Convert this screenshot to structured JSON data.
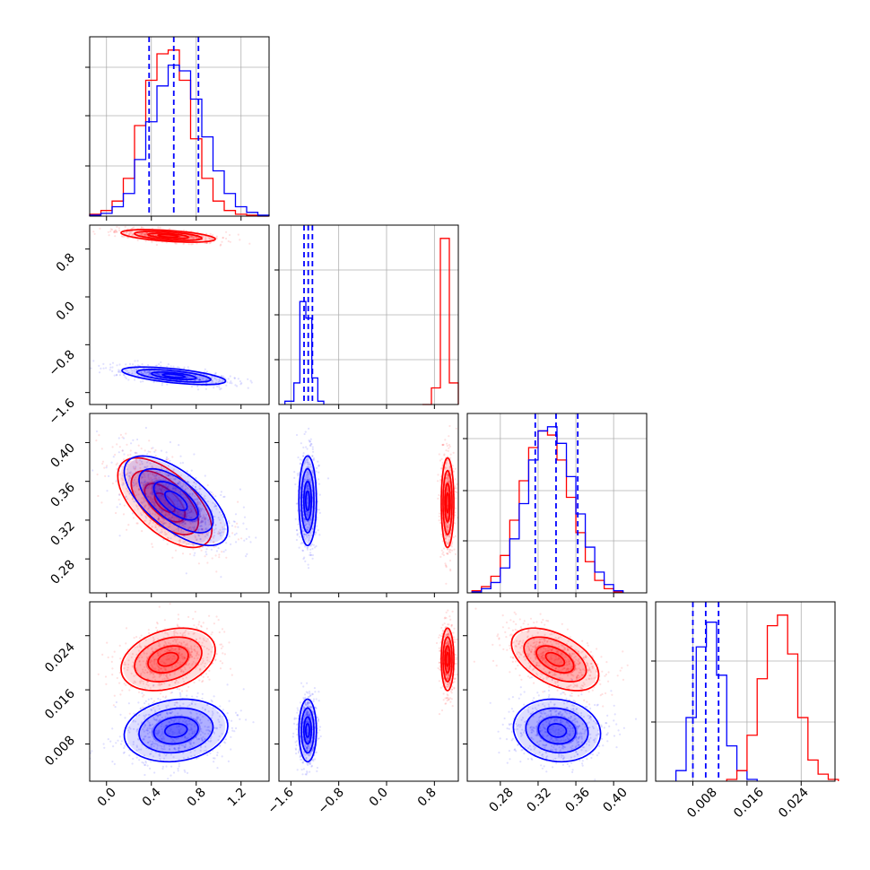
{
  "chart_data": [
    {
      "type": "histogram",
      "panel": "diag-0",
      "xlim": [
        -0.15,
        1.45
      ],
      "x_ticks": [
        0.0,
        0.4,
        0.8,
        1.2
      ],
      "series": [
        {
          "name": "",
          "color": "#ff0000",
          "bin_edges": [
            -0.15,
            -0.05,
            0.05,
            0.15,
            0.25,
            0.35,
            0.45,
            0.55,
            0.65,
            0.75,
            0.85,
            0.95,
            1.05,
            1.15,
            1.25,
            1.35,
            1.45
          ],
          "counts": [
            0.1,
            0.3,
            0.8,
            2.0,
            4.8,
            7.2,
            8.6,
            8.8,
            7.2,
            4.1,
            2.0,
            0.8,
            0.3,
            0.1,
            0.05,
            0.0
          ]
        },
        {
          "name": "",
          "color": "#0000ff",
          "bin_edges": [
            -0.15,
            -0.05,
            0.05,
            0.15,
            0.25,
            0.35,
            0.45,
            0.55,
            0.65,
            0.75,
            0.85,
            0.95,
            1.05,
            1.15,
            1.25,
            1.35,
            1.45
          ],
          "counts": [
            0.05,
            0.15,
            0.5,
            1.2,
            3.0,
            5.0,
            6.9,
            8.0,
            7.7,
            6.2,
            4.2,
            2.4,
            1.2,
            0.5,
            0.2,
            0.05
          ]
        }
      ],
      "quantiles": [
        0.38,
        0.6,
        0.82
      ]
    },
    {
      "type": "histogram",
      "panel": "diag-1",
      "xlim": [
        -1.8,
        1.2
      ],
      "x_ticks": [
        -1.6,
        -0.8,
        0.0,
        0.8
      ],
      "series": [
        {
          "name": "",
          "color": "#ff0000",
          "bin_edges": [
            0.6,
            0.75,
            0.9,
            1.05,
            1.2
          ],
          "counts": [
            0.0,
            1.0,
            10.0,
            1.3
          ]
        },
        {
          "name": "",
          "color": "#0000ff",
          "bin_edges": [
            -1.7,
            -1.55,
            -1.45,
            -1.35,
            -1.25,
            -1.15,
            -1.05
          ],
          "counts": [
            0.2,
            1.3,
            6.2,
            5.2,
            1.6,
            0.2
          ]
        }
      ],
      "quantiles": [
        -1.38,
        -1.31,
        -1.24
      ]
    },
    {
      "type": "histogram",
      "panel": "diag-2",
      "xlim": [
        0.245,
        0.435
      ],
      "x_ticks": [
        0.28,
        0.32,
        0.36,
        0.4
      ],
      "series": [
        {
          "name": "",
          "color": "#ff0000",
          "bin_edges": [
            0.25,
            0.26,
            0.27,
            0.28,
            0.29,
            0.3,
            0.31,
            0.32,
            0.33,
            0.34,
            0.35,
            0.36,
            0.37,
            0.38,
            0.39,
            0.4,
            0.41
          ],
          "counts": [
            0.1,
            0.3,
            0.8,
            1.8,
            3.5,
            5.4,
            7.0,
            7.8,
            7.6,
            6.4,
            4.6,
            2.9,
            1.5,
            0.6,
            0.2,
            0.05
          ]
        },
        {
          "name": "",
          "color": "#0000ff",
          "bin_edges": [
            0.25,
            0.26,
            0.27,
            0.28,
            0.29,
            0.3,
            0.31,
            0.32,
            0.33,
            0.34,
            0.35,
            0.36,
            0.37,
            0.38,
            0.39,
            0.4,
            0.41
          ],
          "counts": [
            0.05,
            0.2,
            0.5,
            1.2,
            2.6,
            4.3,
            6.4,
            7.8,
            8.0,
            7.2,
            5.6,
            3.8,
            2.2,
            1.0,
            0.4,
            0.1
          ]
        }
      ],
      "quantiles": [
        0.317,
        0.339,
        0.362
      ]
    },
    {
      "type": "histogram",
      "panel": "diag-3",
      "xlim": [
        0.0025,
        0.029
      ],
      "x_ticks": [
        0.008,
        0.016,
        0.024
      ],
      "series": [
        {
          "name": "",
          "color": "#0000ff",
          "bin_edges": [
            0.0055,
            0.007,
            0.0085,
            0.01,
            0.0115,
            0.013,
            0.0145,
            0.016,
            0.0175
          ],
          "counts": [
            0.3,
            1.8,
            3.8,
            4.5,
            3.0,
            1.0,
            0.3,
            0.05
          ]
        },
        {
          "name": "",
          "color": "#ff0000",
          "bin_edges": [
            0.013,
            0.0145,
            0.016,
            0.0175,
            0.019,
            0.0205,
            0.022,
            0.0235,
            0.025,
            0.0265,
            0.028,
            0.0295
          ],
          "counts": [
            0.05,
            0.3,
            1.3,
            2.9,
            4.4,
            4.7,
            3.6,
            1.8,
            0.6,
            0.2,
            0.05
          ]
        }
      ],
      "quantiles": [
        0.008,
        0.0099,
        0.0118
      ]
    },
    {
      "type": "scatter-contour",
      "panel": "p10",
      "xlim": [
        -0.15,
        1.45
      ],
      "ylim": [
        -1.8,
        1.2
      ],
      "y_ticks": [
        0.8,
        0.0,
        -0.8,
        -1.6
      ],
      "series": [
        {
          "name": "",
          "color": "#ff0000",
          "mean": [
            0.55,
            1.02
          ],
          "sd": [
            0.2,
            0.05
          ],
          "corr": -0.5
        },
        {
          "name": "",
          "color": "#0000ff",
          "mean": [
            0.6,
            -1.32
          ],
          "sd": [
            0.22,
            0.07
          ],
          "corr": -0.6
        }
      ]
    },
    {
      "type": "scatter-contour",
      "panel": "p20",
      "xlim": [
        -0.15,
        1.45
      ],
      "ylim": [
        0.245,
        0.43
      ],
      "y_ticks": [
        0.4,
        0.36,
        0.32,
        0.28
      ],
      "series": [
        {
          "name": "",
          "color": "#ff0000",
          "mean": [
            0.52,
            0.338
          ],
          "sd": [
            0.2,
            0.022
          ],
          "corr": -0.6
        },
        {
          "name": "",
          "color": "#0000ff",
          "mean": [
            0.62,
            0.34
          ],
          "sd": [
            0.22,
            0.022
          ],
          "corr": -0.65
        }
      ]
    },
    {
      "type": "scatter-contour",
      "panel": "p21",
      "xlim": [
        -1.8,
        1.2
      ],
      "ylim": [
        0.245,
        0.43
      ],
      "series": [
        {
          "name": "",
          "color": "#ff0000",
          "mean": [
            1.02,
            0.338
          ],
          "sd": [
            0.05,
            0.022
          ],
          "corr": 0.0
        },
        {
          "name": "",
          "color": "#0000ff",
          "mean": [
            -1.32,
            0.34
          ],
          "sd": [
            0.07,
            0.022
          ],
          "corr": 0.0
        }
      ]
    },
    {
      "type": "scatter-contour",
      "panel": "p30",
      "xlim": [
        -0.15,
        1.45
      ],
      "ylim": [
        0.0025,
        0.029
      ],
      "y_ticks": [
        0.024,
        0.016,
        0.008
      ],
      "series": [
        {
          "name": "",
          "color": "#ff0000",
          "mean": [
            0.55,
            0.0205
          ],
          "sd": [
            0.2,
            0.0022
          ],
          "corr": 0.3
        },
        {
          "name": "",
          "color": "#0000ff",
          "mean": [
            0.62,
            0.01
          ],
          "sd": [
            0.22,
            0.0022
          ],
          "corr": 0.15
        }
      ]
    },
    {
      "type": "scatter-contour",
      "panel": "p31",
      "xlim": [
        -1.8,
        1.2
      ],
      "ylim": [
        0.0025,
        0.029
      ],
      "series": [
        {
          "name": "",
          "color": "#ff0000",
          "mean": [
            1.02,
            0.0205
          ],
          "sd": [
            0.05,
            0.0022
          ],
          "corr": 0.0
        },
        {
          "name": "",
          "color": "#0000ff",
          "mean": [
            -1.32,
            0.01
          ],
          "sd": [
            0.07,
            0.0022
          ],
          "corr": 0.0
        }
      ]
    },
    {
      "type": "scatter-contour",
      "panel": "p32",
      "xlim": [
        0.245,
        0.435
      ],
      "ylim": [
        0.0025,
        0.029
      ],
      "series": [
        {
          "name": "",
          "color": "#ff0000",
          "mean": [
            0.338,
            0.0205
          ],
          "sd": [
            0.022,
            0.0022
          ],
          "corr": -0.5
        },
        {
          "name": "",
          "color": "#0000ff",
          "mean": [
            0.34,
            0.01
          ],
          "sd": [
            0.022,
            0.0022
          ],
          "corr": -0.1
        }
      ]
    }
  ],
  "tick_labels": {
    "col0_x": [
      "0.0",
      "0.4",
      "0.8",
      "1.2"
    ],
    "col1_x": [
      "−1.6",
      "−0.8",
      "0.0",
      "0.8"
    ],
    "col2_x": [
      "0.28",
      "0.32",
      "0.36",
      "0.40"
    ],
    "col3_x": [
      "0.008",
      "0.016",
      "0.024"
    ],
    "row1_y": [
      "0.8",
      "0.0",
      "−0.8",
      "−1.6"
    ],
    "row2_y": [
      "0.40",
      "0.36",
      "0.32",
      "0.28"
    ],
    "row3_y": [
      "0.024",
      "0.016",
      "0.008"
    ]
  },
  "colors": {
    "red": "#ff0000",
    "blue": "#0000ff",
    "grid": "#b0b0b0",
    "spine": "#000000"
  }
}
